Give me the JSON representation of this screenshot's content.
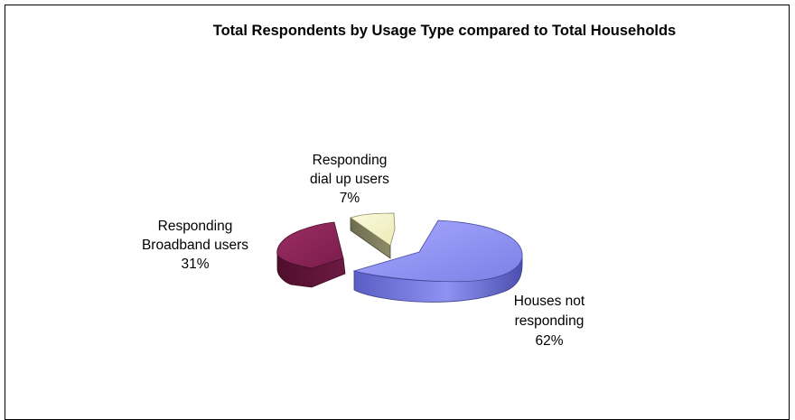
{
  "chart_data": {
    "type": "pie",
    "style": "3d-exploded",
    "title": "Total Respondents by Usage Type compared to Total Households",
    "slices": [
      {
        "label_lines": [
          "Houses not",
          "responding"
        ],
        "value_label": "62%",
        "value": 62,
        "color": "#8f92f2"
      },
      {
        "label_lines": [
          "Responding",
          "Broadband users"
        ],
        "value_label": "31%",
        "value": 31,
        "color": "#8a2456"
      },
      {
        "label_lines": [
          "Responding",
          "dial up users"
        ],
        "value_label": "7%",
        "value": 7,
        "color": "#f6f4c8"
      }
    ],
    "legend": "none"
  }
}
